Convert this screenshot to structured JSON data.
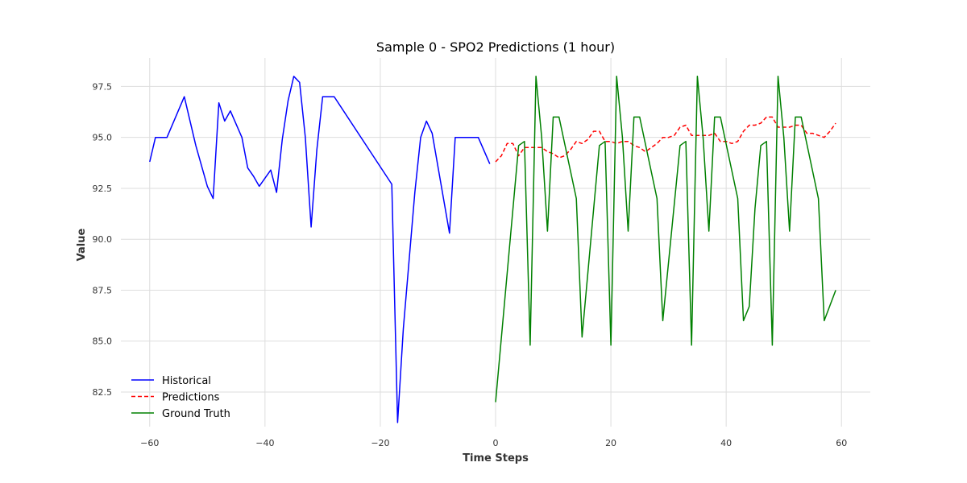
{
  "chart_data": {
    "type": "line",
    "title": "Sample 0 - SPO2 Predictions (1 hour)",
    "xlabel": "Time Steps",
    "ylabel": "Value",
    "xlim": [
      -65,
      65
    ],
    "ylim": [
      80.8,
      98.9
    ],
    "xticks": [
      -60,
      -40,
      -20,
      0,
      20,
      40,
      60
    ],
    "xtick_labels": [
      "−60",
      "−40",
      "−20",
      "0",
      "20",
      "40",
      "60"
    ],
    "yticks": [
      82.5,
      85.0,
      87.5,
      90.0,
      92.5,
      95.0,
      97.5
    ],
    "ytick_labels": [
      "82.5",
      "85.0",
      "87.5",
      "90.0",
      "92.5",
      "95.0",
      "97.5"
    ],
    "grid": true,
    "legend_position": "bottom-left",
    "series": [
      {
        "name": "Historical",
        "color": "#0000ff",
        "dash": "solid",
        "points": [
          [
            -60,
            93.8
          ],
          [
            -59,
            95.0
          ],
          [
            -57,
            95.0
          ],
          [
            -54,
            97.0
          ],
          [
            -52,
            94.6
          ],
          [
            -50,
            92.6
          ],
          [
            -49,
            92.0
          ],
          [
            -48,
            96.7
          ],
          [
            -47,
            95.8
          ],
          [
            -46,
            96.3
          ],
          [
            -44,
            95.0
          ],
          [
            -43,
            93.5
          ],
          [
            -42,
            93.1
          ],
          [
            -41,
            92.6
          ],
          [
            -39,
            93.4
          ],
          [
            -38,
            92.3
          ],
          [
            -37,
            94.9
          ],
          [
            -36,
            96.8
          ],
          [
            -35,
            98.0
          ],
          [
            -34,
            97.7
          ],
          [
            -33,
            95.0
          ],
          [
            -32,
            90.6
          ],
          [
            -31,
            94.4
          ],
          [
            -30,
            97.0
          ],
          [
            -28,
            97.0
          ],
          [
            -18,
            92.7
          ],
          [
            -17,
            81.0
          ],
          [
            -16,
            85.6
          ],
          [
            -14,
            92.3
          ],
          [
            -13,
            95.0
          ],
          [
            -12,
            95.8
          ],
          [
            -11,
            95.2
          ],
          [
            -8,
            90.3
          ],
          [
            -7,
            95.0
          ],
          [
            -3,
            95.0
          ],
          [
            -1,
            93.7
          ]
        ]
      },
      {
        "name": "Predictions",
        "color": "#ff0000",
        "dash": "dashed",
        "points": [
          [
            0,
            93.8
          ],
          [
            1,
            94.1
          ],
          [
            2,
            94.7
          ],
          [
            3,
            94.7
          ],
          [
            4,
            94.1
          ],
          [
            5,
            94.5
          ],
          [
            6,
            94.5
          ],
          [
            7,
            94.5
          ],
          [
            8,
            94.5
          ],
          [
            9,
            94.3
          ],
          [
            10,
            94.2
          ],
          [
            11,
            94.0
          ],
          [
            12,
            94.1
          ],
          [
            13,
            94.4
          ],
          [
            14,
            94.8
          ],
          [
            15,
            94.7
          ],
          [
            16,
            94.9
          ],
          [
            17,
            95.3
          ],
          [
            18,
            95.3
          ],
          [
            19,
            94.8
          ],
          [
            20,
            94.8
          ],
          [
            21,
            94.7
          ],
          [
            22,
            94.8
          ],
          [
            23,
            94.8
          ],
          [
            24,
            94.6
          ],
          [
            25,
            94.5
          ],
          [
            26,
            94.3
          ],
          [
            27,
            94.5
          ],
          [
            28,
            94.7
          ],
          [
            29,
            95.0
          ],
          [
            30,
            95.0
          ],
          [
            31,
            95.1
          ],
          [
            32,
            95.5
          ],
          [
            33,
            95.6
          ],
          [
            34,
            95.1
          ],
          [
            35,
            95.1
          ],
          [
            36,
            95.1
          ],
          [
            37,
            95.1
          ],
          [
            38,
            95.2
          ],
          [
            39,
            94.8
          ],
          [
            40,
            94.8
          ],
          [
            41,
            94.7
          ],
          [
            42,
            94.8
          ],
          [
            43,
            95.3
          ],
          [
            44,
            95.6
          ],
          [
            45,
            95.6
          ],
          [
            46,
            95.7
          ],
          [
            47,
            96.0
          ],
          [
            48,
            96.0
          ],
          [
            49,
            95.5
          ],
          [
            50,
            95.5
          ],
          [
            51,
            95.5
          ],
          [
            52,
            95.6
          ],
          [
            53,
            95.6
          ],
          [
            54,
            95.2
          ],
          [
            55,
            95.2
          ],
          [
            56,
            95.1
          ],
          [
            57,
            95.0
          ],
          [
            58,
            95.3
          ],
          [
            59,
            95.7
          ]
        ]
      },
      {
        "name": "Ground Truth",
        "color": "#008000",
        "dash": "solid",
        "points": [
          [
            0,
            82.0
          ],
          [
            4,
            94.6
          ],
          [
            5,
            94.8
          ],
          [
            6,
            84.8
          ],
          [
            7,
            98.0
          ],
          [
            8,
            95.0
          ],
          [
            9,
            90.4
          ],
          [
            10,
            96.0
          ],
          [
            11,
            96.0
          ],
          [
            14,
            92.0
          ],
          [
            15,
            85.2
          ],
          [
            18,
            94.6
          ],
          [
            19,
            94.8
          ],
          [
            20,
            84.8
          ],
          [
            21,
            98.0
          ],
          [
            22,
            95.0
          ],
          [
            23,
            90.4
          ],
          [
            24,
            96.0
          ],
          [
            25,
            96.0
          ],
          [
            28,
            92.0
          ],
          [
            29,
            86.0
          ],
          [
            32,
            94.6
          ],
          [
            33,
            94.8
          ],
          [
            34,
            84.8
          ],
          [
            35,
            98.0
          ],
          [
            36,
            95.0
          ],
          [
            37,
            90.4
          ],
          [
            38,
            96.0
          ],
          [
            39,
            96.0
          ],
          [
            42,
            92.0
          ],
          [
            43,
            86.0
          ],
          [
            44,
            86.7
          ],
          [
            45,
            91.5
          ],
          [
            46,
            94.6
          ],
          [
            47,
            94.8
          ],
          [
            48,
            84.8
          ],
          [
            49,
            98.0
          ],
          [
            50,
            95.0
          ],
          [
            51,
            90.4
          ],
          [
            52,
            96.0
          ],
          [
            53,
            96.0
          ],
          [
            56,
            92.0
          ],
          [
            57,
            86.0
          ],
          [
            59,
            87.5
          ]
        ]
      }
    ]
  }
}
